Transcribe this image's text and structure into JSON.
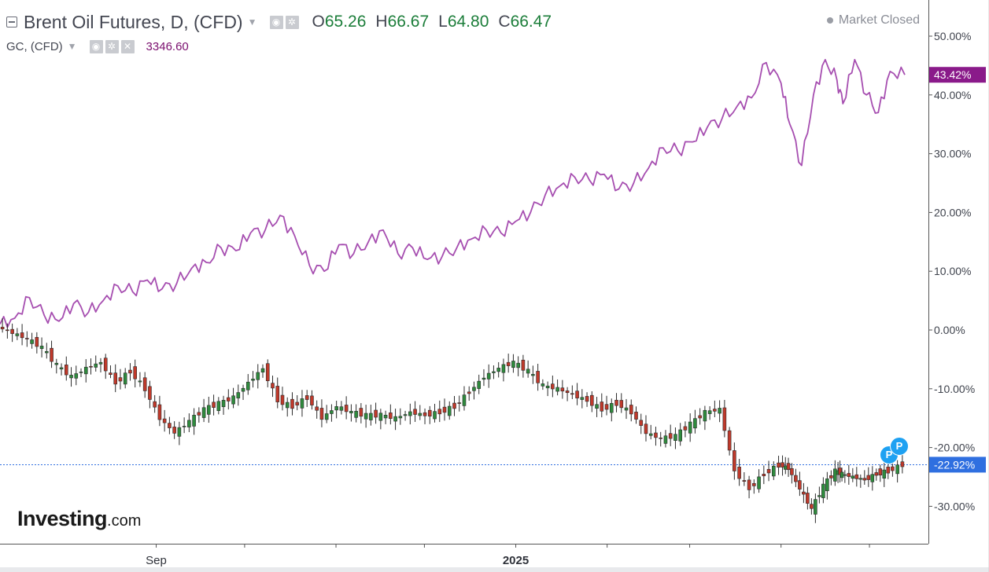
{
  "header": {
    "main_title": "Brent Oil Futures, D, (CFD)",
    "ohlc": [
      {
        "key": "O",
        "value": "65.26"
      },
      {
        "key": "H",
        "value": "66.67"
      },
      {
        "key": "L",
        "value": "64.80"
      },
      {
        "key": "C",
        "value": "66.47"
      }
    ],
    "secondary_title": "GC, (CFD)",
    "secondary_value": "3346.60",
    "market_status": "Market Closed"
  },
  "logo": {
    "main": "Investing",
    "suffix": ".com"
  },
  "flags": [
    "P",
    "P"
  ],
  "colors": {
    "gold_line": "#a64eb0",
    "gold_badge": "#8a1a8a",
    "oil_badge": "#2f6fe0",
    "bull": "#2e8b3d",
    "bear": "#c0392b",
    "flag": "#1ea1f2"
  },
  "chart_data": {
    "type": "line",
    "title": "Brent Oil Futures, D, (CFD)",
    "y_axis": {
      "unit": "%",
      "range": [
        -36,
        55
      ],
      "ticks": [
        "50.00%",
        "40.00%",
        "30.00%",
        "20.00%",
        "10.00%",
        "0.00%",
        "-10.00%",
        "-20.00%",
        "-30.00%"
      ],
      "tick_values": [
        50,
        40,
        30,
        20,
        10,
        0,
        -10,
        -20,
        -30
      ],
      "grid": false
    },
    "x_axis": {
      "range": [
        "2024-07-10",
        "2025-05-13"
      ],
      "tick_labels": [
        {
          "date": "2024-09-01",
          "label": "Sep",
          "bold": false
        },
        {
          "date": "2025-01-01",
          "label": "2025",
          "bold": true
        }
      ],
      "minor_ticks": [
        "2024-10-01",
        "2024-11-01",
        "2024-12-01",
        "2025-02-01",
        "2025-03-01",
        "2025-04-01",
        "2025-05-01"
      ]
    },
    "series": [
      {
        "name": "GC, (CFD)",
        "style": "line",
        "last_label": "43.42%",
        "last_value": 43.42,
        "x": [
          "2024-07-10",
          "2024-07-15",
          "2024-07-20",
          "2024-07-25",
          "2024-07-30",
          "2024-08-04",
          "2024-08-09",
          "2024-08-14",
          "2024-08-19",
          "2024-08-24",
          "2024-08-29",
          "2024-09-03",
          "2024-09-08",
          "2024-09-13",
          "2024-09-18",
          "2024-09-23",
          "2024-09-28",
          "2024-10-03",
          "2024-10-08",
          "2024-10-13",
          "2024-10-18",
          "2024-10-23",
          "2024-10-28",
          "2024-11-02",
          "2024-11-07",
          "2024-11-12",
          "2024-11-17",
          "2024-11-22",
          "2024-11-27",
          "2024-12-02",
          "2024-12-07",
          "2024-12-12",
          "2024-12-17",
          "2024-12-22",
          "2024-12-27",
          "2025-01-01",
          "2025-01-06",
          "2025-01-11",
          "2025-01-16",
          "2025-01-21",
          "2025-01-26",
          "2025-01-31",
          "2025-02-05",
          "2025-02-10",
          "2025-02-15",
          "2025-02-20",
          "2025-02-25",
          "2025-03-02",
          "2025-03-07",
          "2025-03-12",
          "2025-03-17",
          "2025-03-22",
          "2025-03-27",
          "2025-04-01",
          "2025-04-04",
          "2025-04-08",
          "2025-04-12",
          "2025-04-16",
          "2025-04-20",
          "2025-04-22",
          "2025-04-26",
          "2025-04-30",
          "2025-05-04",
          "2025-05-08",
          "2025-05-13"
        ],
        "y": [
          1.0,
          2.0,
          5.5,
          2.5,
          1.5,
          4.5,
          3.0,
          5.0,
          7.5,
          6.5,
          8.5,
          7.0,
          8.0,
          10.5,
          11.5,
          14.0,
          13.5,
          16.5,
          17.0,
          19.5,
          16.0,
          11.0,
          10.0,
          14.5,
          13.0,
          15.0,
          17.0,
          13.0,
          14.0,
          12.0,
          12.5,
          14.0,
          15.5,
          17.0,
          16.5,
          18.5,
          20.0,
          23.0,
          24.5,
          26.0,
          25.5,
          26.5,
          24.0,
          25.0,
          27.5,
          31.0,
          30.5,
          32.0,
          34.5,
          36.0,
          38.0,
          39.5,
          45.5,
          42.0,
          35.0,
          28.0,
          40.0,
          46.0,
          42.5,
          38.5,
          46.0,
          40.0,
          37.0,
          44.0,
          43.42
        ]
      },
      {
        "name": "Brent Oil Futures, D, (CFD)",
        "style": "candlestick",
        "last_label": "-22.92%",
        "last_value": -22.92,
        "x": [
          "2024-07-10",
          "2024-07-15",
          "2024-07-20",
          "2024-07-25",
          "2024-07-30",
          "2024-08-04",
          "2024-08-09",
          "2024-08-14",
          "2024-08-19",
          "2024-08-24",
          "2024-08-29",
          "2024-09-03",
          "2024-09-08",
          "2024-09-13",
          "2024-09-18",
          "2024-09-23",
          "2024-09-28",
          "2024-10-03",
          "2024-10-08",
          "2024-10-13",
          "2024-10-18",
          "2024-10-23",
          "2024-10-28",
          "2024-11-02",
          "2024-11-07",
          "2024-11-12",
          "2024-11-17",
          "2024-11-22",
          "2024-11-27",
          "2024-12-02",
          "2024-12-07",
          "2024-12-12",
          "2024-12-17",
          "2024-12-22",
          "2024-12-27",
          "2025-01-01",
          "2025-01-06",
          "2025-01-11",
          "2025-01-16",
          "2025-01-21",
          "2025-01-26",
          "2025-01-31",
          "2025-02-05",
          "2025-02-10",
          "2025-02-15",
          "2025-02-20",
          "2025-02-25",
          "2025-03-02",
          "2025-03-07",
          "2025-03-12",
          "2025-03-17",
          "2025-03-22",
          "2025-03-27",
          "2025-04-01",
          "2025-04-04",
          "2025-04-08",
          "2025-04-12",
          "2025-04-16",
          "2025-04-20",
          "2025-04-22",
          "2025-04-26",
          "2025-04-30",
          "2025-05-04",
          "2025-05-08",
          "2025-05-13"
        ],
        "y": [
          0.5,
          -0.5,
          -1.5,
          -3.0,
          -6.0,
          -8.0,
          -6.5,
          -5.5,
          -9.0,
          -7.0,
          -10.0,
          -15.0,
          -17.5,
          -15.5,
          -13.5,
          -12.5,
          -11.5,
          -9.0,
          -6.5,
          -12.0,
          -13.0,
          -11.5,
          -15.0,
          -13.0,
          -14.0,
          -14.5,
          -14.5,
          -15.0,
          -14.0,
          -14.5,
          -14.0,
          -13.0,
          -10.5,
          -8.0,
          -6.5,
          -5.5,
          -7.0,
          -9.5,
          -10.0,
          -11.0,
          -12.0,
          -13.5,
          -12.5,
          -14.0,
          -17.5,
          -18.5,
          -18.0,
          -16.0,
          -14.0,
          -13.5,
          -24.0,
          -27.0,
          -24.5,
          -23.0,
          -23.5,
          -27.0,
          -30.5,
          -26.5,
          -24.0,
          -24.5,
          -25.0,
          -25.5,
          -24.5,
          -24.0,
          -22.92
        ]
      }
    ],
    "current_level_line": -22.92
  }
}
